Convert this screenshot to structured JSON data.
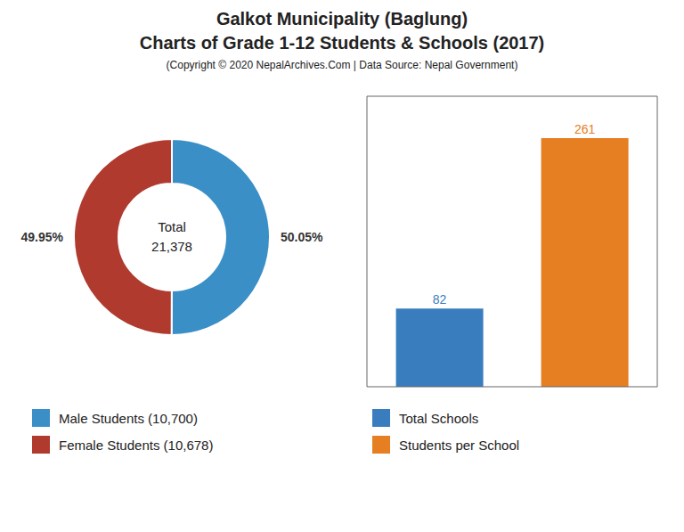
{
  "chart_data": [
    {
      "type": "pie",
      "title": "Galkot Municipality (Baglung)\nCharts of Grade 1-12 Students & Schools (2017)",
      "subtitle": "(Copyright © 2020 NepalArchives.Com | Data Source: Nepal Government)",
      "categories": [
        "Male Students (10,700)",
        "Female Students (10,678)"
      ],
      "values": [
        50.05,
        49.95
      ],
      "value_labels": [
        "50.05%",
        "49.95%"
      ],
      "colors": [
        "#3a8fc7",
        "#b03a2e"
      ],
      "data_labels": true,
      "legend": "bottom",
      "annotations": [
        "Total\n21,378"
      ]
    },
    {
      "type": "bar",
      "categories": [
        "Total Schools",
        "Students per School"
      ],
      "values": [
        82,
        261
      ],
      "colors": [
        "#3a7dbf",
        "#e67e22"
      ],
      "ylim": [
        0,
        305
      ],
      "yticks": [],
      "tick_labels": false,
      "data_labels": true,
      "legend": "bottom"
    }
  ]
}
